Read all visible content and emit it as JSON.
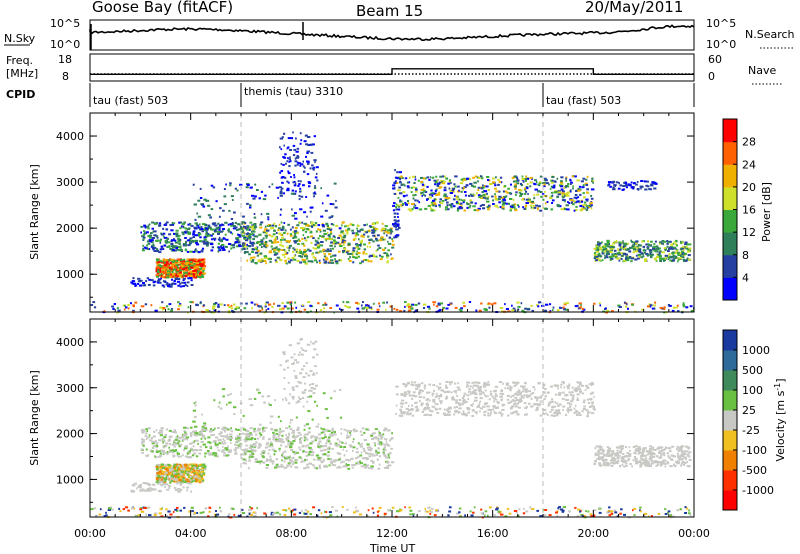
{
  "header": {
    "left": "Goose Bay (fitACF)",
    "center": "Beam 15",
    "right": "20/May/2011"
  },
  "strips": {
    "nsky_label": "N.Sky",
    "nsky_ticks": [
      "10^5",
      "10^0"
    ],
    "nsearch_label": "N.Search",
    "nsearch_ticks": [
      "10^5",
      "10^0"
    ],
    "freq_label_1": "Freq.",
    "freq_label_2": "[MHz]",
    "freq_ticks": [
      "18",
      "8"
    ],
    "nave_label": "Nave",
    "nave_ticks": [
      "60",
      "0"
    ],
    "cpid_label": "CPID",
    "cpid_segments": [
      {
        "start_hour": 0,
        "label": "tau (fast) 503"
      },
      {
        "start_hour": 6,
        "label": "themis (tau) 3310"
      },
      {
        "start_hour": 18,
        "label": "tau (fast) 503"
      }
    ],
    "freq_profile": [
      {
        "from_hour": 0,
        "to_hour": 12,
        "freq_mhz": 10.5
      },
      {
        "from_hour": 12,
        "to_hour": 20,
        "freq_mhz": 12.5
      },
      {
        "from_hour": 20,
        "to_hour": 24,
        "freq_mhz": 10.5
      }
    ]
  },
  "chart_data": [
    {
      "type": "heatmap",
      "name": "power-panel",
      "ylabel": "Slant Range [km]",
      "yticks": [
        "1000",
        "2000",
        "3000",
        "4000"
      ],
      "ylim": [
        180,
        4500
      ],
      "xlim_hours": [
        0,
        24
      ],
      "colorbar_label": "Power [dB]",
      "colorbar_ticks": [
        "4",
        "8",
        "12",
        "16",
        "20",
        "24",
        "28"
      ],
      "colorbar_colors": [
        "#0000ff",
        "#2540a0",
        "#2f7f5a",
        "#3aa83a",
        "#cfe02a",
        "#f0b000",
        "#ff6000",
        "#ff0000"
      ],
      "regions": [
        {
          "hours": [
            2.5,
            4.5
          ],
          "range_km": [
            1000,
            1300
          ],
          "value": "high"
        },
        {
          "hours": [
            3.0,
            6.5
          ],
          "range_km": [
            1500,
            2100
          ],
          "value": "medium"
        },
        {
          "hours": [
            6.0,
            12.0
          ],
          "range_km": [
            1300,
            2100
          ],
          "value": "medium"
        },
        {
          "hours": [
            12.3,
            20.0
          ],
          "range_km": [
            2400,
            3100
          ],
          "value": "medium"
        },
        {
          "hours": [
            20.0,
            23.8
          ],
          "range_km": [
            1300,
            1700
          ],
          "value": "medium"
        }
      ]
    },
    {
      "type": "heatmap",
      "name": "velocity-panel",
      "ylabel": "Slant Range [km]",
      "yticks": [
        "1000",
        "2000",
        "3000",
        "4000"
      ],
      "ylim": [
        180,
        4500
      ],
      "xlim_hours": [
        0,
        24
      ],
      "colorbar_label": "Velocity [m s",
      "colorbar_label_sup": "-1",
      "colorbar_label_end": "]",
      "colorbar_ticks": [
        "1000",
        "500",
        "100",
        "25",
        "-25",
        "-100",
        "-500",
        "-1000"
      ],
      "colorbar_colors": [
        "#1a3aa0",
        "#2e6a9a",
        "#3e8a5a",
        "#6ac040",
        "#c8c8c4",
        "#f0c020",
        "#f08000",
        "#ff3000",
        "#ff0000"
      ],
      "xticks": [
        "00:00",
        "04:00",
        "08:00",
        "12:00",
        "16:00",
        "20:00",
        "00:00"
      ],
      "xlabel": "Time UT"
    }
  ]
}
